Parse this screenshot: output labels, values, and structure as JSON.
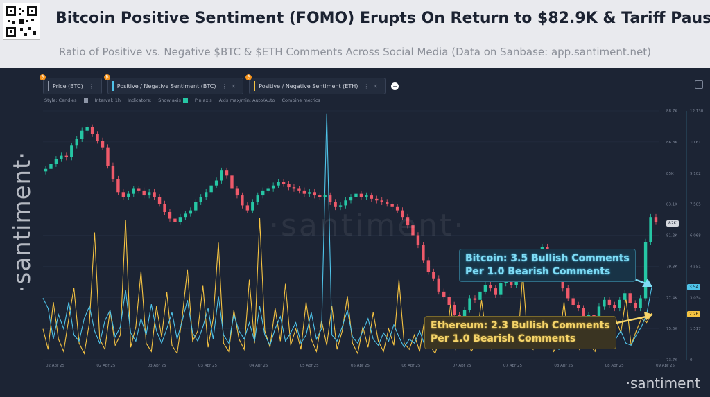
{
  "header": {
    "title": "Bitcoin Positive Sentiment (FOMO) Erupts On Return to $82.9K & Tariff Pause",
    "subtitle": "Ratio of Positive vs. Negative $BTC & $ETH Comments Across Social Media (Data on Sanbase: app.santiment.net)"
  },
  "toolbar": {
    "metrics": [
      {
        "label": "Price (BTC)",
        "color": "#8d95a6",
        "badge": "₿"
      },
      {
        "label": "Positive / Negative Sentiment (BTC)",
        "color": "#4fc3e8",
        "badge": "₿"
      },
      {
        "label": "Positive / Negative Sentiment (ETH)",
        "color": "#f5c342",
        "badge": "₿"
      }
    ],
    "add_icon": "plus-icon"
  },
  "options": {
    "style": "Style: Candles",
    "interval": "Interval: 1h",
    "indicators": "Indicators:",
    "show_axis": "Show axis",
    "pin_axis": "Pin axis",
    "axis_maxmin": "Axis max/min: Auto/Auto",
    "combine": "Combine metrics"
  },
  "watermarks": {
    "side": "·santiment·",
    "center": "·santiment·",
    "corner": "·santiment"
  },
  "callouts": {
    "btc_line1": "Bitcoin: 3.5 Bullish Comments",
    "btc_line2": "Per 1.0 Bearish Comments",
    "eth_line1": "Ethereum: 2.3 Bullish Comments",
    "eth_line2": "Per 1.0 Bearish Comments"
  },
  "value_tags": {
    "price": "82K",
    "btc": "3.54",
    "eth": "2.26"
  },
  "colors": {
    "up": "#26c6a4",
    "down": "#ef5a6a",
    "btc_line": "#4fc3e8",
    "eth_line": "#f5c342",
    "price_tag_bg": "#d6d9df"
  },
  "chart_data": {
    "type": "line",
    "x_ticks": [
      "02 Apr 25",
      "02 Apr 25",
      "03 Apr 25",
      "03 Apr 25",
      "04 Apr 25",
      "05 Apr 25",
      "05 Apr 25",
      "06 Apr 25",
      "07 Apr 25",
      "07 Apr 25",
      "08 Apr 25",
      "08 Apr 25",
      "09 Apr 25"
    ],
    "price_axis": {
      "ticks": [
        "88.7K",
        "86.8K",
        "85K",
        "83.1K",
        "81.2K",
        "79.3K",
        "77.4K",
        "75.6K",
        "73.7K"
      ],
      "ylim": [
        73700,
        88700
      ]
    },
    "sentiment_axis": {
      "ticks": [
        "12.130",
        "10.611",
        "9.102",
        "7.585",
        "6.068",
        "4.551",
        "3.034",
        "1.517",
        "0"
      ],
      "ylim": [
        0,
        12.13
      ]
    },
    "price_closes": [
      85200,
      85500,
      85800,
      86000,
      85900,
      86600,
      87000,
      87500,
      87700,
      87300,
      86900,
      86500,
      85400,
      84600,
      83800,
      83500,
      83700,
      84000,
      83900,
      83600,
      83800,
      83500,
      83100,
      82600,
      82200,
      82000,
      82300,
      82500,
      82700,
      83200,
      83500,
      83800,
      84200,
      84500,
      85100,
      84800,
      84000,
      83600,
      83000,
      82700,
      83200,
      83600,
      83900,
      84000,
      84200,
      84400,
      84300,
      84100,
      84000,
      83900,
      83700,
      83800,
      83600,
      83500,
      83600,
      83200,
      82900,
      83000,
      83300,
      83500,
      83700,
      83500,
      83600,
      83400,
      83300,
      83200,
      83100,
      82900,
      82700,
      82300,
      81800,
      81200,
      80600,
      79700,
      79000,
      78600,
      77800,
      77500,
      77000,
      76400,
      76000,
      76700,
      77400,
      77300,
      77800,
      78200,
      78000,
      77600,
      78300,
      78700,
      78200,
      78800,
      79400,
      79000,
      79700,
      80100,
      80500,
      79900,
      79300,
      78700,
      78000,
      77400,
      77000,
      76800,
      76300,
      76400,
      76200,
      76900,
      77300,
      77000,
      76800,
      77300,
      77700,
      77100,
      76800,
      77400,
      80800,
      82300,
      82000
    ],
    "btc_sentiment": [
      3.0,
      2.5,
      1.0,
      2.2,
      1.5,
      2.8,
      1.2,
      0.9,
      2.0,
      2.6,
      1.4,
      0.8,
      1.9,
      2.4,
      1.1,
      1.6,
      3.4,
      1.3,
      0.9,
      2.0,
      1.2,
      2.7,
      1.4,
      0.8,
      1.5,
      2.3,
      1.0,
      1.9,
      2.9,
      1.3,
      0.9,
      1.6,
      2.5,
      1.0,
      3.1,
      1.2,
      0.8,
      2.2,
      1.4,
      1.0,
      1.8,
      0.9,
      2.6,
      1.2,
      0.7,
      1.5,
      2.1,
      0.9,
      1.3,
      1.8,
      0.8,
      1.2,
      2.3,
      1.0,
      1.5,
      12.0,
      1.2,
      0.9,
      1.6,
      2.4,
      1.1,
      0.8,
      1.4,
      2.0,
      1.0,
      0.7,
      1.3,
      0.9,
      1.7,
      1.1,
      0.6,
      1.0,
      0.8,
      1.4,
      0.7,
      0.9,
      1.2,
      0.6,
      1.0,
      0.8,
      0.5,
      0.9,
      1.3,
      0.7,
      0.6,
      1.0,
      0.8,
      1.2,
      0.6,
      0.9,
      1.5,
      0.8,
      0.7,
      1.1,
      0.9,
      0.6,
      1.3,
      0.8,
      1.0,
      0.7,
      0.5,
      0.9,
      1.2,
      0.7,
      1.0,
      0.6,
      0.8,
      1.3,
      0.9,
      0.7,
      0.6,
      1.0,
      1.4,
      0.8,
      0.7,
      1.2,
      1.6,
      2.2,
      3.54
    ],
    "eth_sentiment": [
      1.5,
      0.5,
      2.8,
      1.0,
      0.4,
      2.0,
      3.5,
      0.8,
      0.3,
      1.8,
      6.2,
      1.0,
      0.5,
      2.4,
      0.7,
      1.2,
      6.8,
      0.6,
      1.6,
      4.3,
      0.8,
      0.4,
      2.6,
      1.1,
      3.3,
      0.7,
      0.3,
      2.1,
      4.4,
      0.9,
      1.4,
      3.6,
      0.6,
      2.0,
      5.7,
      0.8,
      0.4,
      2.4,
      1.0,
      0.5,
      3.9,
      0.8,
      6.9,
      1.4,
      0.6,
      2.5,
      0.9,
      3.7,
      0.7,
      1.5,
      0.5,
      2.8,
      1.0,
      0.4,
      1.9,
      0.7,
      2.6,
      0.5,
      1.4,
      3.1,
      0.8,
      0.3,
      1.6,
      0.6,
      2.3,
      0.9,
      0.4,
      1.5,
      0.7,
      3.9,
      0.8,
      0.5,
      1.2,
      0.4,
      2.0,
      0.7,
      0.3,
      1.1,
      0.6,
      2.7,
      0.5,
      0.9,
      1.6,
      0.4,
      0.8,
      2.9,
      1.0,
      0.5,
      0.9,
      2.1,
      0.7,
      1.3,
      0.6,
      4.2,
      0.8,
      0.5,
      2.0,
      0.7,
      1.1,
      0.4,
      0.8,
      2.8,
      0.6,
      0.9,
      0.5,
      1.6,
      0.7,
      0.4,
      1.4,
      0.8,
      0.6,
      2.0,
      1.3,
      3.0,
      0.7,
      1.4,
      2.0,
      1.8,
      2.26
    ]
  }
}
